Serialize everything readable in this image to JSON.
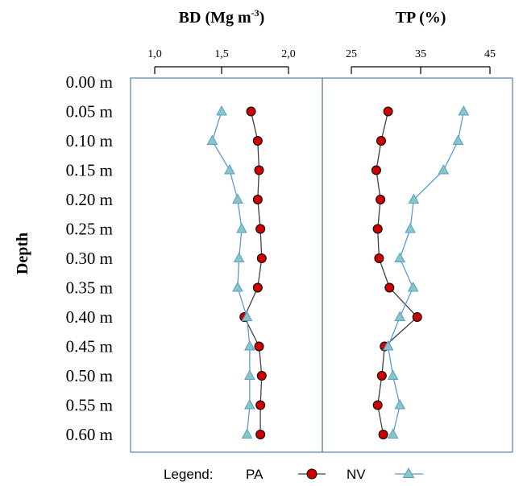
{
  "legend": {
    "label": "Legend:"
  },
  "chart_data": {
    "type": "line",
    "ylabel": "Depth",
    "y_categories": [
      "0.00 m",
      "0.05 m",
      "0.10 m",
      "0.15 m",
      "0.20 m",
      "0.25 m",
      "0.30 m",
      "0.35 m",
      "0.40 m",
      "0.45 m",
      "0.50 m",
      "0.55 m",
      "0.60 m"
    ],
    "panels": [
      {
        "title": "BD (Mg m",
        "title_sup": "-3",
        "title_close": ")",
        "xlim": [
          1.0,
          2.0
        ],
        "xticks": [
          "1,0",
          "1,5",
          "2,0"
        ],
        "series": [
          {
            "name": "PA",
            "color": "#cc0000",
            "line_color": "#404040",
            "marker": "circle",
            "values": [
              1.72,
              1.77,
              1.78,
              1.77,
              1.79,
              1.8,
              1.77,
              1.67,
              1.78,
              1.8,
              1.79,
              1.79
            ]
          },
          {
            "name": "NV",
            "color": "#86c8c0",
            "line_color": "#5b9bd5",
            "marker": "triangle",
            "values": [
              1.5,
              1.43,
              1.56,
              1.62,
              1.65,
              1.63,
              1.62,
              1.69,
              1.71,
              1.71,
              1.71,
              1.69
            ]
          }
        ]
      },
      {
        "title": "TP (%)",
        "title_sup": "",
        "title_close": "",
        "xlim": [
          25,
          45
        ],
        "xticks": [
          "25",
          "35",
          "45"
        ],
        "series": [
          {
            "name": "PA",
            "color": "#cc0000",
            "line_color": "#404040",
            "marker": "circle",
            "values": [
              30.3,
              29.3,
              28.6,
              29.2,
              28.8,
              29.0,
              30.5,
              34.5,
              29.8,
              29.4,
              28.8,
              29.6
            ]
          },
          {
            "name": "NV",
            "color": "#86c8c0",
            "line_color": "#5b9bd5",
            "marker": "triangle",
            "values": [
              41.2,
              40.4,
              38.3,
              34.0,
              33.5,
              32.0,
              33.9,
              32.0,
              30.3,
              31.0,
              32.0,
              31.0
            ]
          }
        ]
      }
    ],
    "colors": {
      "frame": "#5b7fae",
      "axis": "#000000"
    }
  }
}
